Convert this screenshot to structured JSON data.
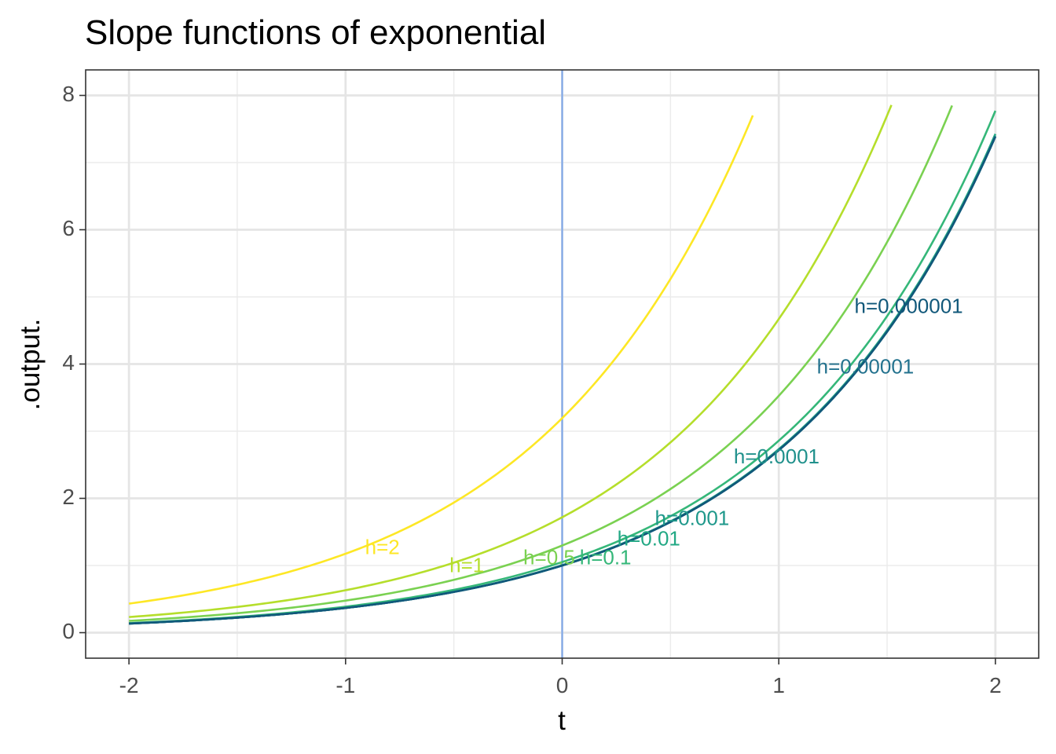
{
  "chart_data": {
    "type": "line",
    "title": "Slope functions of exponential",
    "xlabel": "t",
    "ylabel": ".output.",
    "xlim": [
      -2.2,
      2.2
    ],
    "ylim": [
      -0.38,
      8.38
    ],
    "xticks": [
      "-2",
      "-1",
      "0",
      "1",
      "2"
    ],
    "yticks": [
      "0",
      "2",
      "4",
      "6",
      "8"
    ],
    "grid": true,
    "legend": "none",
    "function": "(exp(t + h) - exp(t)) / h",
    "vline": {
      "x": 0,
      "color": "#7fa8e8"
    },
    "series": [
      {
        "name": "h=2",
        "h": 2,
        "color": "#fde725",
        "t_range": [
          -2,
          0.88
        ],
        "label_at": [
          -0.83,
          1.25
        ]
      },
      {
        "name": "h=1",
        "h": 1,
        "color": "#b5de2b",
        "t_range": [
          -2,
          1.52
        ],
        "label_at": [
          -0.44,
          0.98
        ]
      },
      {
        "name": "h=0.5",
        "h": 0.5,
        "color": "#7ad151",
        "t_range": [
          -2,
          1.8
        ],
        "label_at": [
          -0.06,
          1.1
        ]
      },
      {
        "name": "h=0.1",
        "h": 0.1,
        "color": "#35b779",
        "t_range": [
          -2,
          2.0
        ],
        "label_at": [
          0.2,
          1.1
        ]
      },
      {
        "name": "h=0.01",
        "h": 0.01,
        "color": "#22a884",
        "t_range": [
          -2,
          2.0
        ],
        "label_at": [
          0.4,
          1.38
        ]
      },
      {
        "name": "h=0.001",
        "h": 0.001,
        "color": "#1f988b",
        "t_range": [
          -2,
          2.0
        ],
        "label_at": [
          0.6,
          1.68
        ]
      },
      {
        "name": "h=0.0001",
        "h": 0.0001,
        "color": "#21918c",
        "t_range": [
          -2,
          2.0
        ],
        "label_at": [
          0.99,
          2.6
        ]
      },
      {
        "name": "h=0.00001",
        "h": 1e-05,
        "color": "#23728e",
        "t_range": [
          -2,
          2.0
        ],
        "label_at": [
          1.4,
          3.94
        ]
      },
      {
        "name": "h=0.000001",
        "h": 1e-06,
        "color": "#11587a",
        "t_range": [
          -2,
          2.0
        ],
        "label_at": [
          1.6,
          4.84
        ]
      }
    ]
  }
}
